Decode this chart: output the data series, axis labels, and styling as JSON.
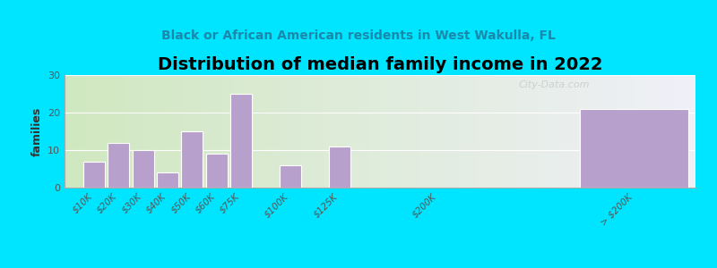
{
  "title": "Distribution of median family income in 2022",
  "subtitle": "Black or African American residents in West Wakulla, FL",
  "ylabel": "families",
  "categories": [
    "$10K",
    "$20K",
    "$30K",
    "$40K",
    "$50K",
    "$60K",
    "$75K",
    "$100K",
    "$125K",
    "$200K",
    "> $200K"
  ],
  "values": [
    7,
    12,
    10,
    4,
    15,
    9,
    25,
    6,
    11,
    0,
    21
  ],
  "bar_color": "#b8a0cc",
  "bg_outer": "#00e5ff",
  "ylim": [
    0,
    30
  ],
  "yticks": [
    0,
    10,
    20,
    30
  ],
  "title_fontsize": 14,
  "subtitle_fontsize": 10,
  "watermark": "City-Data.com",
  "x_positions": [
    0,
    1,
    2,
    3,
    4,
    5,
    6,
    8,
    10,
    14,
    20
  ],
  "bar_widths": [
    1,
    1,
    1,
    1,
    1,
    1,
    1,
    1,
    1,
    1,
    5
  ]
}
